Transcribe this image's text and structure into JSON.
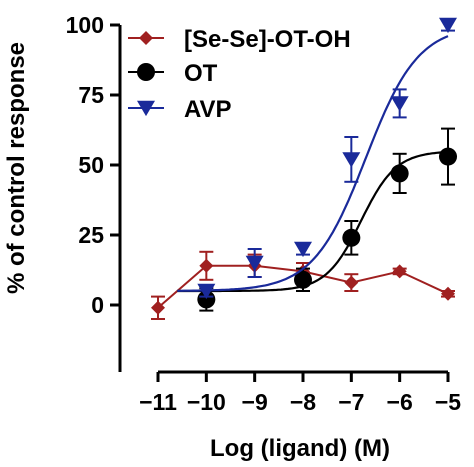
{
  "chart_data": {
    "type": "scatter",
    "xlabel": "Log (ligand) (M)",
    "ylabel": "% of control response",
    "xlim": [
      -11.2,
      -4.8
    ],
    "ylim": [
      -10,
      105
    ],
    "x_ticks": [
      -11,
      -10,
      -9,
      -8,
      -7,
      -6,
      -5
    ],
    "x_tick_labels": [
      "−11",
      "−10",
      "−9",
      "−8",
      "−7",
      "−6",
      "−5"
    ],
    "y_ticks": [
      0,
      25,
      50,
      75,
      100
    ],
    "y_tick_labels": [
      "0",
      "25",
      "50",
      "75",
      "100"
    ],
    "legend_position": "top-right",
    "series": [
      {
        "name": "[Se-Se]-OT-OH",
        "color": "#a02020",
        "marker": "diamond",
        "x": [
          -11,
          -10,
          -9,
          -8,
          -7,
          -6,
          -5
        ],
        "y": [
          -1,
          14,
          14,
          12,
          8,
          12,
          4
        ],
        "err": [
          4,
          5,
          4,
          3,
          3,
          1,
          1
        ],
        "connect": "line"
      },
      {
        "name": "OT",
        "color": "#000000",
        "marker": "circle",
        "x": [
          -10,
          -8,
          -7,
          -6,
          -5
        ],
        "y": [
          2,
          9,
          24,
          47,
          53
        ],
        "err": [
          4,
          4,
          6,
          7,
          10
        ],
        "connect": "curve",
        "fit": {
          "bottom": 5,
          "top": 55,
          "logEC50": -6.8,
          "hill": 1.2
        }
      },
      {
        "name": "AVP",
        "color": "#1a2a9a",
        "marker": "triangle-down",
        "x": [
          -10,
          -9,
          -8,
          -7,
          -6,
          -5
        ],
        "y": [
          5,
          15,
          20,
          52,
          72,
          100
        ],
        "err": [
          2,
          5,
          2,
          8,
          5,
          2
        ],
        "connect": "curve",
        "fit": {
          "bottom": 5,
          "top": 100,
          "logEC50": -6.7,
          "hill": 0.8
        }
      }
    ]
  }
}
